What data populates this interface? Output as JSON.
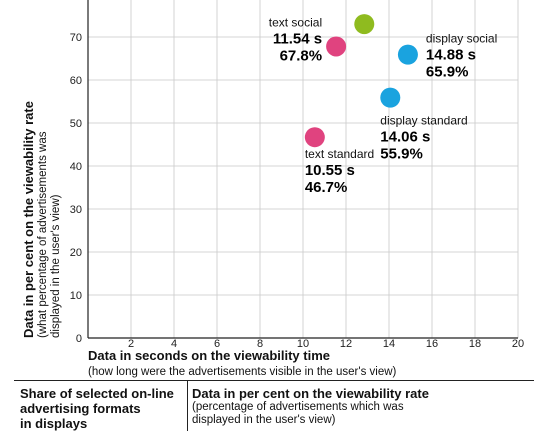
{
  "chart_data": {
    "type": "scatter",
    "xlabel": "Data in seconds on the viewability time",
    "xlabel_sub": "(how long were the advertisements visible in the user's view)",
    "ylabel": "Data in per cent on the viewability rate",
    "ylabel_sub": [
      "(what percentage of advertisements was",
      "displayed in the user's view)"
    ],
    "xlim": [
      0,
      20
    ],
    "ylim": [
      0,
      80
    ],
    "x_ticks": [
      0,
      2,
      4,
      6,
      8,
      10,
      12,
      14,
      16,
      18,
      20
    ],
    "y_ticks": [
      0,
      10,
      20,
      30,
      40,
      50,
      60,
      70
    ],
    "grid": true,
    "points": [
      {
        "name": "",
        "x_label": "",
        "y_label": "73.0%",
        "x": 12.85,
        "y": 73.0,
        "color": "#8fbb1f"
      },
      {
        "name": "text social",
        "x_label": "11.54 s",
        "y_label": "67.8%",
        "x": 11.54,
        "y": 67.8,
        "color": "#e0437f"
      },
      {
        "name": "display social",
        "x_label": "14.88 s",
        "y_label": "65.9%",
        "x": 14.88,
        "y": 65.9,
        "color": "#1aa3df"
      },
      {
        "name": "display standard",
        "x_label": "14.06 s",
        "y_label": "55.9%",
        "x": 14.06,
        "y": 55.9,
        "color": "#1aa3df"
      },
      {
        "name": "text standard",
        "x_label": "10.55 s",
        "y_label": "46.7%",
        "x": 10.55,
        "y": 46.7,
        "color": "#e0437f"
      }
    ]
  },
  "legend": {
    "left_lines": [
      "Share of selected on-line",
      "advertising formats",
      "in displays"
    ],
    "right_title": "Data in per cent on the viewability rate",
    "right_sub": [
      "(percentage of advertisements which was",
      "displayed in the user's view)"
    ]
  }
}
